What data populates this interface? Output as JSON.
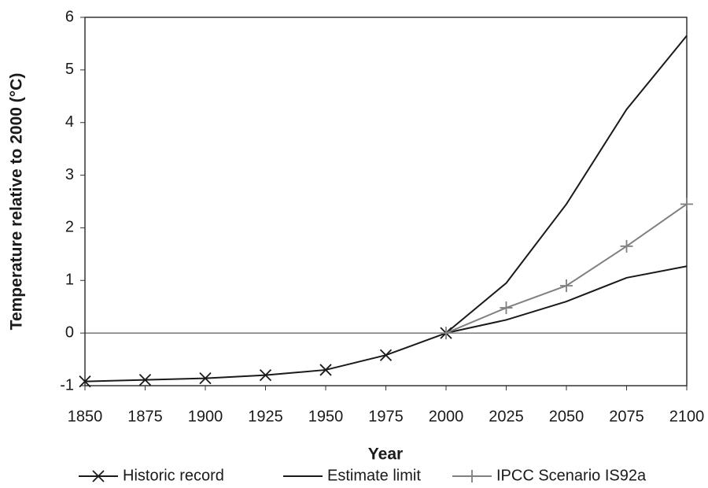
{
  "chart_data": {
    "type": "line",
    "y_label": "Temperature relative to 2000 (°C)",
    "x_label": "Year",
    "x": [
      1850,
      1875,
      1900,
      1925,
      1950,
      1975,
      2000,
      2025,
      2050,
      2075,
      2100
    ],
    "xlim": [
      1850,
      2100
    ],
    "xticks": [
      1850,
      1875,
      1900,
      1925,
      1950,
      1975,
      2000,
      2025,
      2050,
      2075,
      2100
    ],
    "ylim": [
      -1,
      6
    ],
    "yticks": [
      -1,
      0,
      1,
      2,
      3,
      4,
      5,
      6
    ],
    "legend": "bottom",
    "series": [
      {
        "name": "Historic record",
        "color": "#1a1a1a",
        "marker": "x",
        "values": [
          -0.92,
          -0.89,
          -0.86,
          -0.8,
          -0.7,
          -0.42,
          0,
          null,
          null,
          null,
          null
        ]
      },
      {
        "name": "Estimate limit",
        "color": "#1a1a1a",
        "marker": "none",
        "values": [
          null,
          null,
          null,
          null,
          null,
          null,
          0,
          0.95,
          2.45,
          4.25,
          5.65
        ],
        "lower": [
          null,
          null,
          null,
          null,
          null,
          null,
          0,
          0.25,
          0.6,
          1.05,
          1.27
        ]
      },
      {
        "name": "IPCC Scenario IS92a",
        "color": "#808080",
        "marker": "plus",
        "values": [
          null,
          null,
          null,
          null,
          null,
          null,
          0,
          0.48,
          0.9,
          1.65,
          2.45
        ]
      }
    ]
  }
}
